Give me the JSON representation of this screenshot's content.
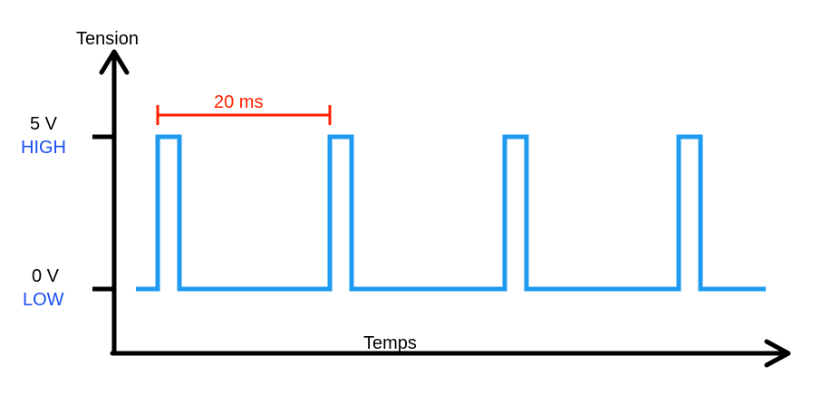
{
  "y_axis_label": "Tension",
  "x_axis_label": "Temps",
  "levels": {
    "high": {
      "voltage": "5 V",
      "state": "HIGH"
    },
    "low": {
      "voltage": "0 V",
      "state": "LOW"
    }
  },
  "period_label": "20 ms",
  "colors": {
    "signal": "#1e9bf0",
    "state_text": "#1a4cf2",
    "period": "#ff2200",
    "axis": "#000000"
  },
  "pulse_count": 4
}
